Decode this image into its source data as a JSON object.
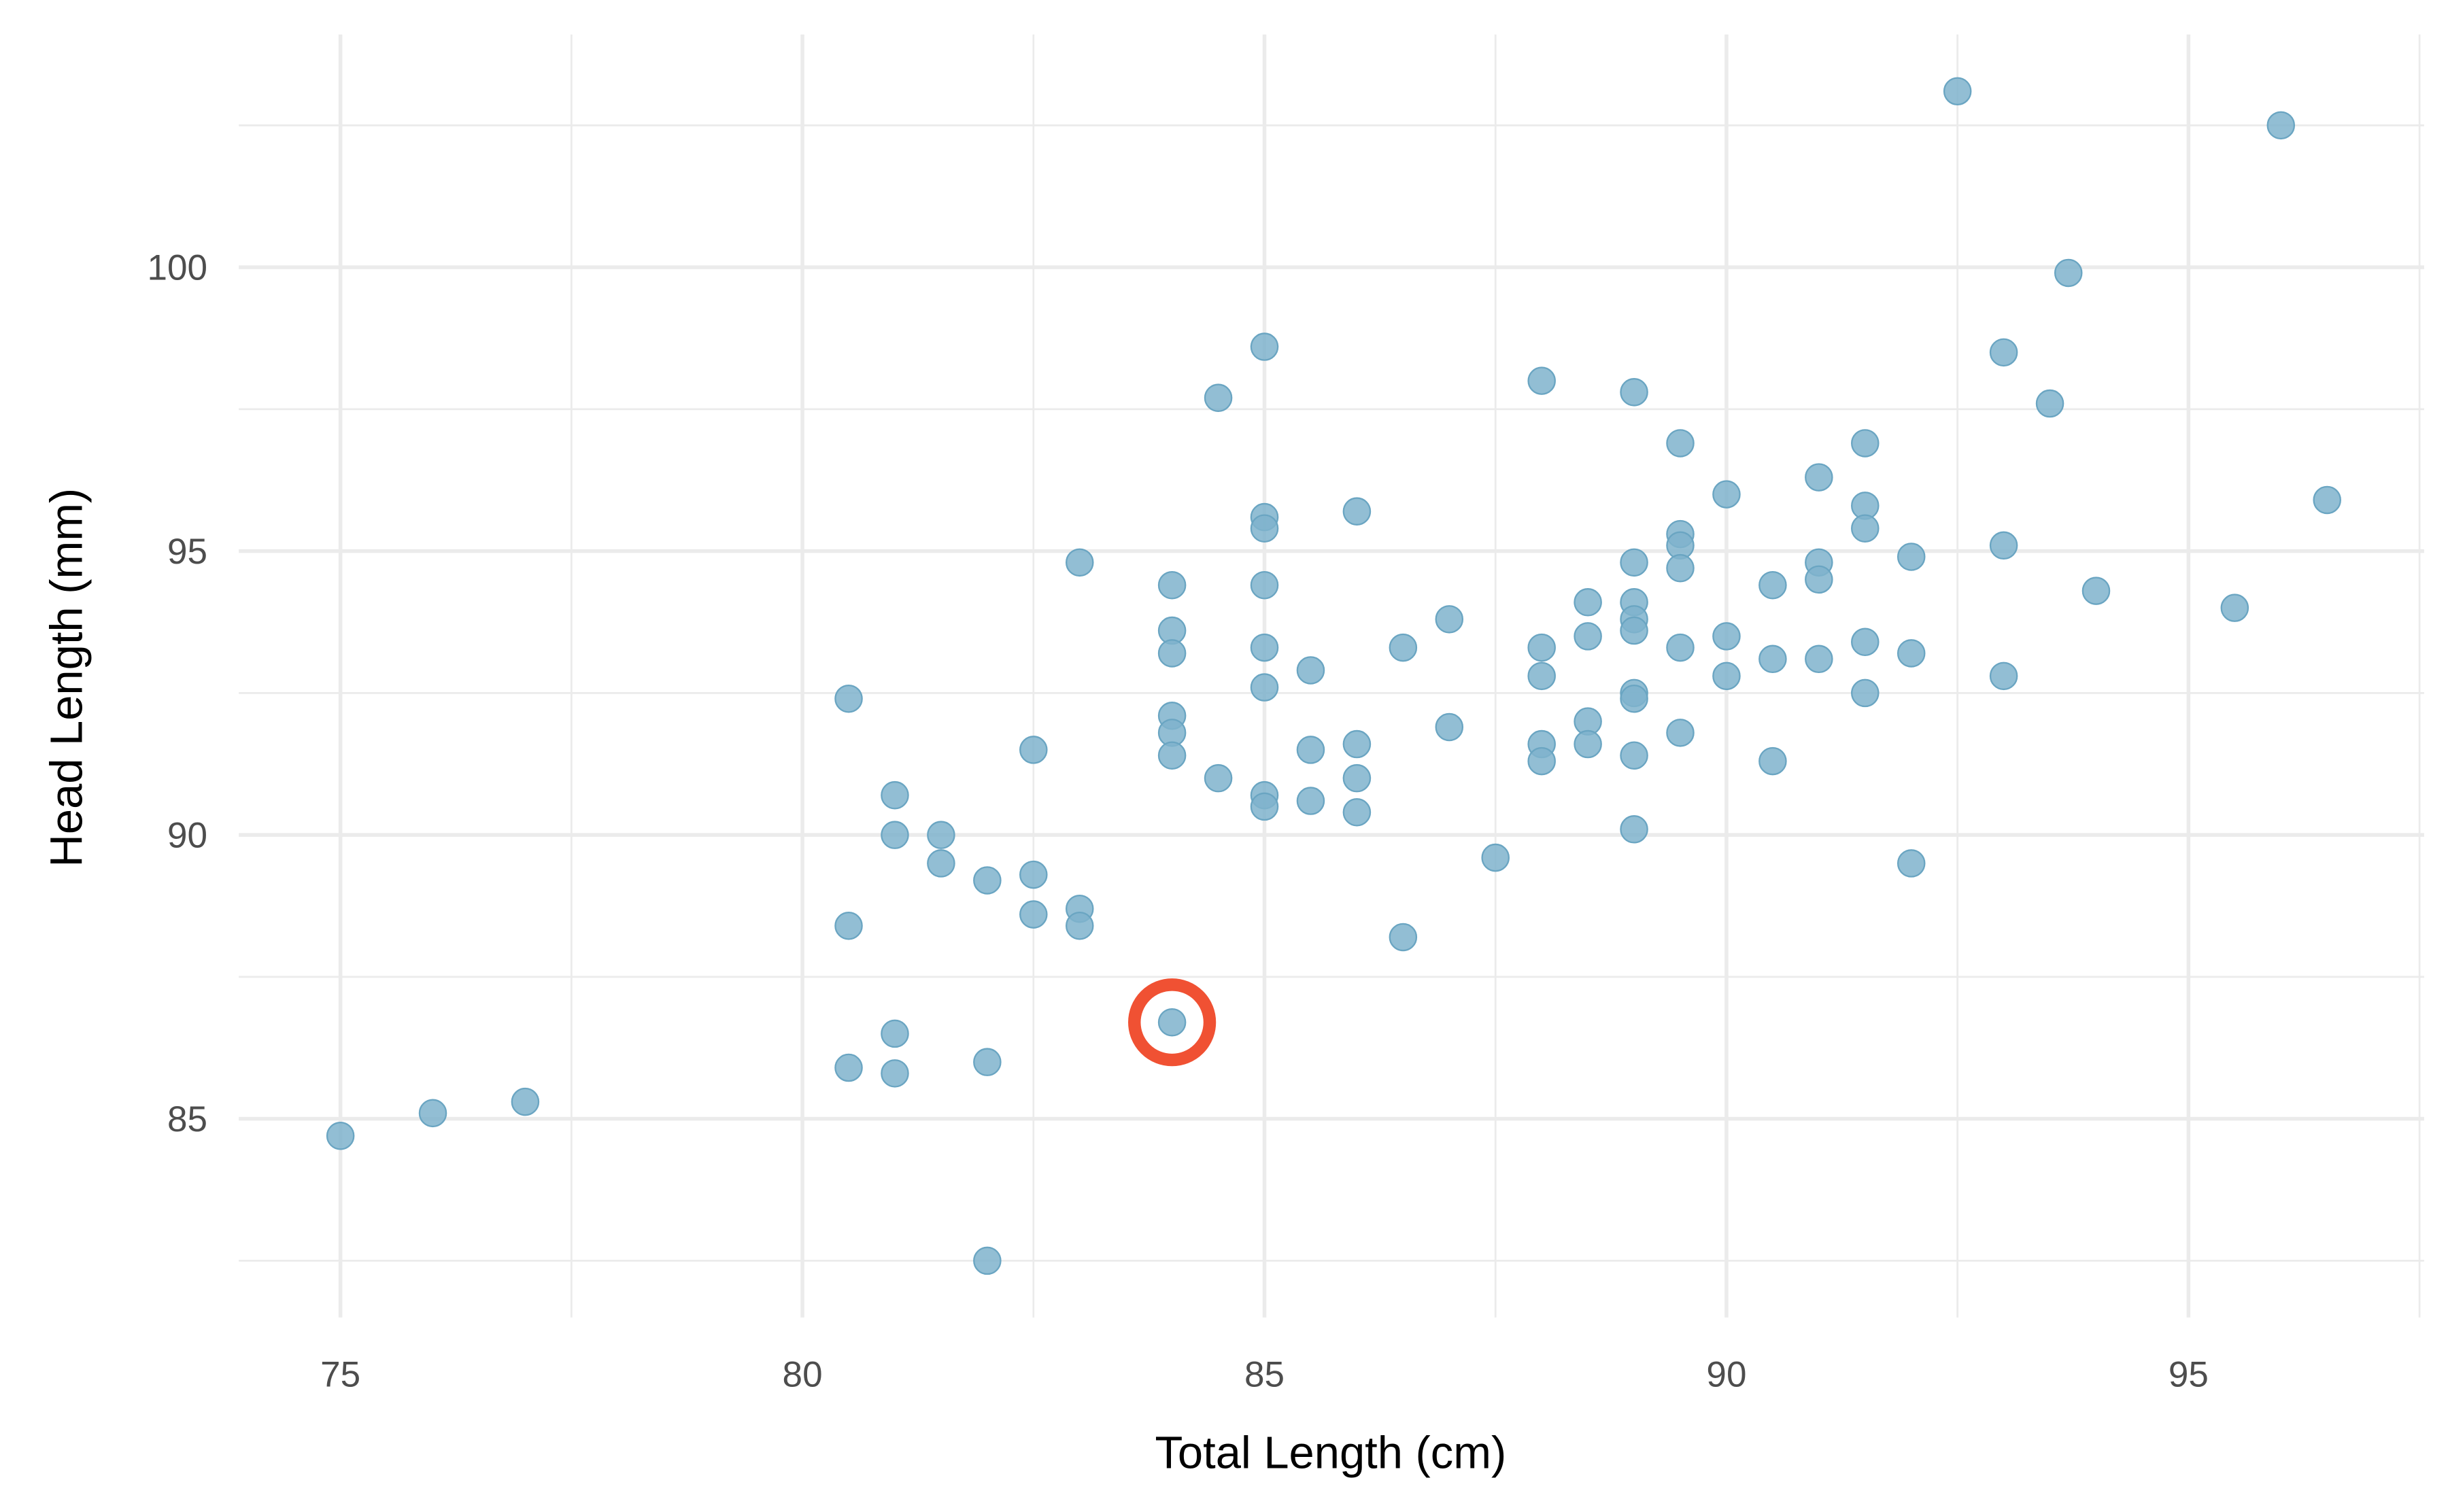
{
  "chart_data": {
    "type": "scatter",
    "title": "",
    "xlabel": "Total Length (cm)",
    "ylabel": "Head Length (mm)",
    "xlim": [
      73.9,
      97.55
    ],
    "ylim": [
      81.5,
      104.1
    ],
    "xticks": [
      75,
      80,
      85,
      90,
      95
    ],
    "yticks": [
      85,
      90,
      95,
      100
    ],
    "xtick_labels": [
      "75",
      "80",
      "85",
      "90",
      "95"
    ],
    "ytick_labels": [
      "85",
      "90",
      "95",
      "100"
    ],
    "grid": true,
    "point_color": "#7fb3cd",
    "highlight_color": "#f05133",
    "highlighted_point": {
      "x": 84.0,
      "y": 86.7
    },
    "points": [
      [
        92.5,
        103.1
      ],
      [
        96.0,
        102.5
      ],
      [
        93.7,
        99.9
      ],
      [
        93.0,
        98.5
      ],
      [
        93.5,
        97.6
      ],
      [
        85.0,
        98.6
      ],
      [
        84.5,
        97.7
      ],
      [
        88.0,
        98.0
      ],
      [
        89.0,
        97.8
      ],
      [
        89.5,
        96.9
      ],
      [
        91.5,
        96.9
      ],
      [
        90.0,
        96.0
      ],
      [
        91.0,
        96.3
      ],
      [
        91.5,
        95.8
      ],
      [
        91.5,
        95.4
      ],
      [
        96.5,
        95.9
      ],
      [
        85.0,
        95.6
      ],
      [
        85.0,
        95.4
      ],
      [
        86.0,
        95.7
      ],
      [
        83.0,
        94.8
      ],
      [
        89.5,
        95.3
      ],
      [
        89.5,
        95.1
      ],
      [
        89.5,
        94.7
      ],
      [
        89.0,
        94.8
      ],
      [
        91.0,
        94.8
      ],
      [
        91.0,
        94.5
      ],
      [
        92.0,
        94.9
      ],
      [
        93.0,
        95.1
      ],
      [
        90.5,
        94.4
      ],
      [
        84.0,
        94.4
      ],
      [
        85.0,
        94.4
      ],
      [
        94.0,
        94.3
      ],
      [
        95.5,
        94.0
      ],
      [
        88.5,
        94.1
      ],
      [
        89.0,
        94.1
      ],
      [
        89.0,
        93.8
      ],
      [
        89.0,
        93.6
      ],
      [
        87.0,
        93.8
      ],
      [
        84.0,
        93.6
      ],
      [
        84.0,
        93.2
      ],
      [
        85.0,
        93.3
      ],
      [
        86.5,
        93.3
      ],
      [
        88.0,
        93.3
      ],
      [
        88.5,
        93.5
      ],
      [
        89.5,
        93.3
      ],
      [
        90.0,
        93.5
      ],
      [
        90.5,
        93.1
      ],
      [
        91.0,
        93.1
      ],
      [
        91.5,
        93.4
      ],
      [
        92.0,
        93.2
      ],
      [
        85.5,
        92.9
      ],
      [
        85.0,
        92.6
      ],
      [
        88.0,
        92.8
      ],
      [
        90.0,
        92.8
      ],
      [
        93.0,
        92.8
      ],
      [
        91.5,
        92.5
      ],
      [
        89.0,
        92.5
      ],
      [
        89.0,
        92.4
      ],
      [
        80.5,
        92.4
      ],
      [
        84.0,
        92.1
      ],
      [
        84.0,
        91.8
      ],
      [
        88.5,
        92.0
      ],
      [
        87.0,
        91.9
      ],
      [
        89.5,
        91.8
      ],
      [
        82.5,
        91.5
      ],
      [
        85.5,
        91.5
      ],
      [
        86.0,
        91.6
      ],
      [
        88.0,
        91.6
      ],
      [
        88.5,
        91.6
      ],
      [
        84.0,
        91.4
      ],
      [
        88.0,
        91.3
      ],
      [
        89.0,
        91.4
      ],
      [
        90.5,
        91.3
      ],
      [
        84.5,
        91.0
      ],
      [
        86.0,
        91.0
      ],
      [
        81.0,
        90.7
      ],
      [
        85.0,
        90.7
      ],
      [
        85.0,
        90.5
      ],
      [
        85.5,
        90.6
      ],
      [
        86.0,
        90.4
      ],
      [
        81.0,
        90.0
      ],
      [
        81.5,
        90.0
      ],
      [
        89.0,
        90.1
      ],
      [
        81.5,
        89.5
      ],
      [
        92.0,
        89.5
      ],
      [
        87.5,
        89.6
      ],
      [
        82.0,
        89.2
      ],
      [
        82.5,
        89.3
      ],
      [
        82.5,
        88.6
      ],
      [
        83.0,
        88.7
      ],
      [
        83.0,
        88.4
      ],
      [
        80.5,
        88.4
      ],
      [
        86.5,
        88.2
      ],
      [
        84.0,
        86.7
      ],
      [
        81.0,
        86.5
      ],
      [
        80.5,
        85.9
      ],
      [
        81.0,
        85.8
      ],
      [
        82.0,
        86.0
      ],
      [
        77.0,
        85.3
      ],
      [
        76.0,
        85.1
      ],
      [
        75.0,
        84.7
      ],
      [
        82.0,
        82.5
      ]
    ]
  }
}
